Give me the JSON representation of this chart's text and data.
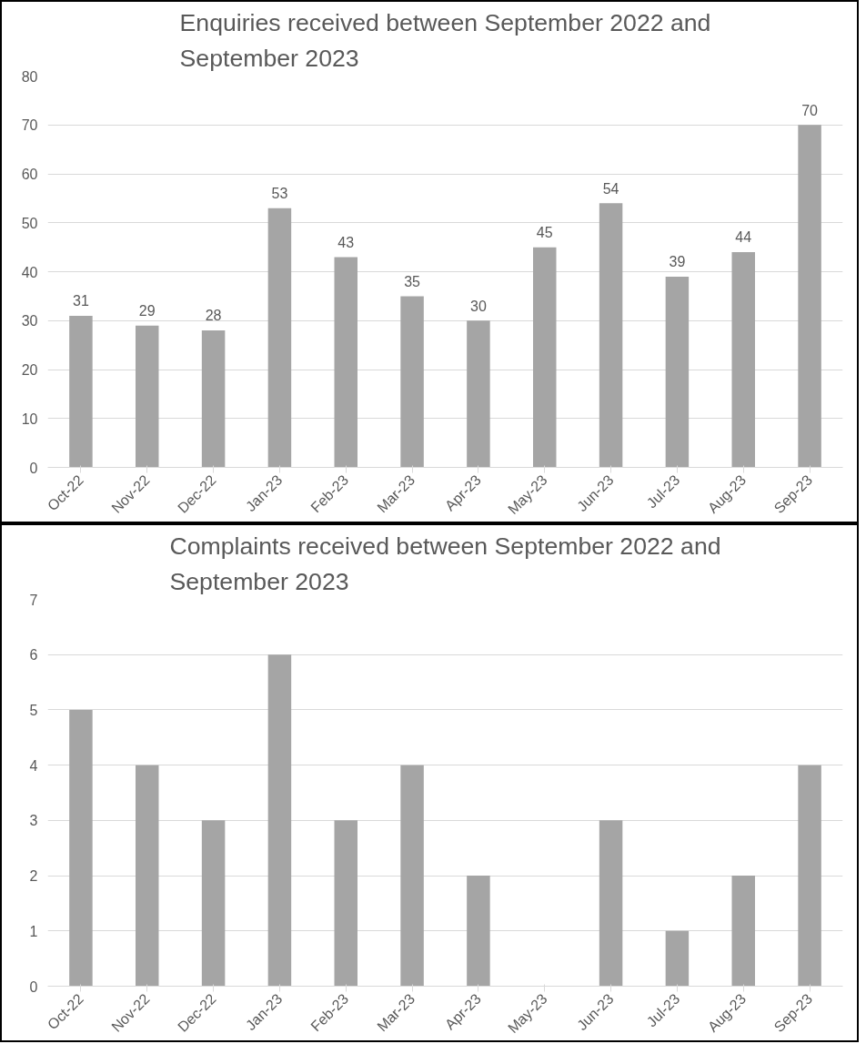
{
  "chart_data": [
    {
      "type": "bar",
      "title": "Enquiries received between September 2022 and September 2023",
      "categories": [
        "Oct-22",
        "Nov-22",
        "Dec-22",
        "Jan-23",
        "Feb-23",
        "Mar-23",
        "Apr-23",
        "May-23",
        "Jun-23",
        "Jul-23",
        "Aug-23",
        "Sep-23"
      ],
      "values": [
        31,
        29,
        28,
        53,
        43,
        35,
        30,
        45,
        54,
        39,
        44,
        70
      ],
      "color": "#a5a5a5",
      "ylim": [
        0,
        80
      ],
      "yticks": [
        0,
        10,
        20,
        30,
        40,
        50,
        60,
        70,
        80
      ],
      "grid": "y",
      "data_labels": true
    },
    {
      "type": "bar",
      "title": "Complaints received between September 2022 and September 2023",
      "categories": [
        "Oct-22",
        "Nov-22",
        "Dec-22",
        "Jan-23",
        "Feb-23",
        "Mar-23",
        "Apr-23",
        "May-23",
        "Jun-23",
        "Jul-23",
        "Aug-23",
        "Sep-23"
      ],
      "values": [
        5,
        4,
        3,
        6,
        3,
        4,
        2,
        0,
        3,
        1,
        2,
        4
      ],
      "color": "#a5a5a5",
      "ylim": [
        0,
        7
      ],
      "yticks": [
        0,
        1,
        2,
        3,
        4,
        5,
        6,
        7
      ],
      "grid": "y"
    }
  ]
}
